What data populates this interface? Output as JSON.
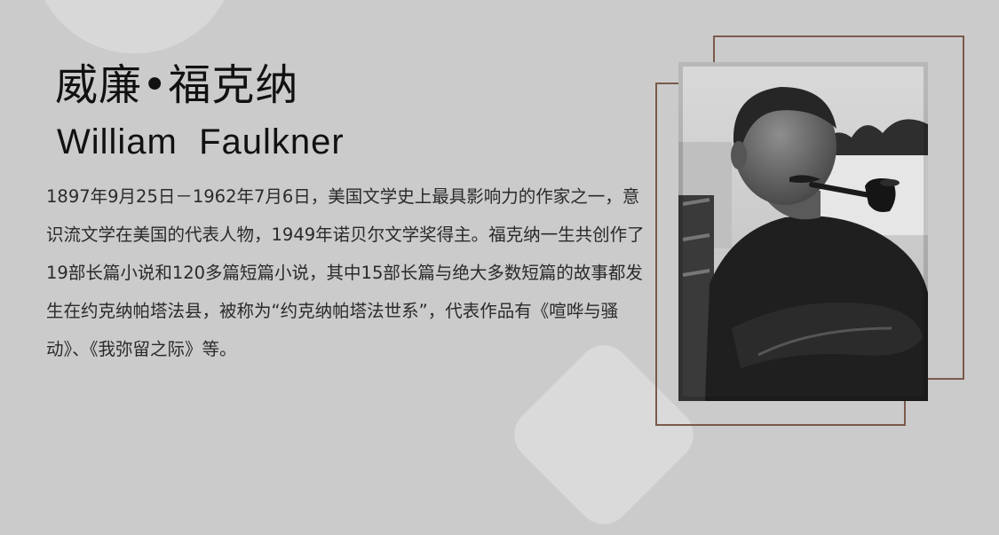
{
  "title": {
    "chinese": "威廉•福克纳",
    "english": "William  Faulkner"
  },
  "bio": {
    "text": " 1897年9月25日－1962年7月6日，美国文学史上最具影响力的作家之一，意识流文学在美国的代表人物，1949年诺贝尔文学奖得主。福克纳一生共创作了19部长篇小说和120多篇短篇小说，其中15部长篇与绝大多数短篇的故事都发生在约克纳帕塔法县，被称为“约克纳帕塔法世系”，代表作品有《喧哗与骚动》、《我弥留之际》等。"
  },
  "colors": {
    "background": "#cbcbcb",
    "frame": "#7a5a4c",
    "title": "#111111",
    "body_text": "#2a2a2a"
  }
}
